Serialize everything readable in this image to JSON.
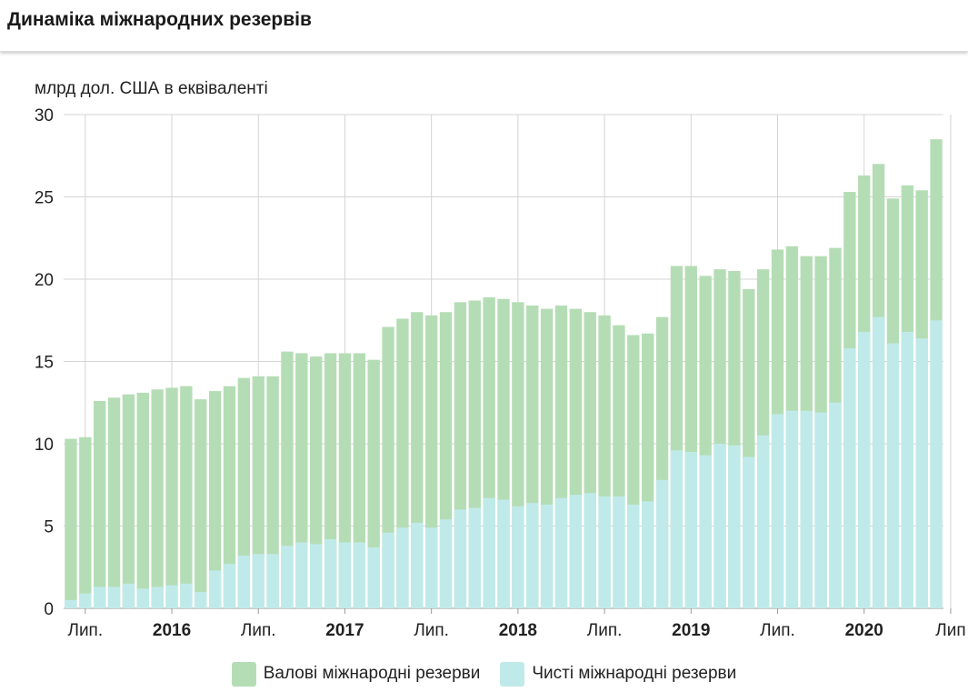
{
  "header": {
    "title": "Динаміка міжнародних резервів"
  },
  "colors": {
    "gross": "#b5ddb5",
    "net": "#c0eaea",
    "grid": "#d4d4d4",
    "axis": "#999999"
  },
  "chart_data": {
    "type": "bar",
    "stacked": "overlay",
    "ylabel": "млрд дол. США в еквіваленті",
    "ylim": [
      0,
      30
    ],
    "yticks": [
      0,
      5,
      10,
      15,
      20,
      25,
      30
    ],
    "x_start": "2015-06",
    "x_end": "2020-07",
    "xticks": [
      {
        "label": "Лип.",
        "month": "2015-07",
        "bold": false
      },
      {
        "label": "2016",
        "month": "2016-01",
        "bold": true
      },
      {
        "label": "Лип.",
        "month": "2016-07",
        "bold": false
      },
      {
        "label": "2017",
        "month": "2017-01",
        "bold": true
      },
      {
        "label": "Лип.",
        "month": "2017-07",
        "bold": false
      },
      {
        "label": "2018",
        "month": "2018-01",
        "bold": true
      },
      {
        "label": "Лип.",
        "month": "2018-07",
        "bold": false
      },
      {
        "label": "2019",
        "month": "2019-01",
        "bold": true
      },
      {
        "label": "Лип.",
        "month": "2019-07",
        "bold": false
      },
      {
        "label": "2020",
        "month": "2020-01",
        "bold": true
      },
      {
        "label": "Лип",
        "month": "2020-07",
        "bold": false
      }
    ],
    "legend_position": "bottom",
    "series": [
      {
        "name": "Валові міжнародні резерви",
        "color": "#b5ddb5",
        "values": [
          10.3,
          10.4,
          12.6,
          12.8,
          13.0,
          13.1,
          13.3,
          13.4,
          13.5,
          12.7,
          13.2,
          13.5,
          14.0,
          14.1,
          14.1,
          15.6,
          15.5,
          15.3,
          15.5,
          15.5,
          15.5,
          15.1,
          17.1,
          17.6,
          18.0,
          17.8,
          18.0,
          18.6,
          18.7,
          18.9,
          18.8,
          18.6,
          18.4,
          18.2,
          18.4,
          18.2,
          18.0,
          17.8,
          17.2,
          16.6,
          16.7,
          17.7,
          20.8,
          20.8,
          20.2,
          20.6,
          20.5,
          19.4,
          20.6,
          21.8,
          22.0,
          21.4,
          21.4,
          21.9,
          25.3,
          26.3,
          27.0,
          24.9,
          25.7,
          25.4,
          28.5
        ]
      },
      {
        "name": "Чисті міжнародні резерви",
        "color": "#c0eaea",
        "values": [
          0.5,
          0.9,
          1.3,
          1.3,
          1.5,
          1.2,
          1.3,
          1.4,
          1.5,
          1.0,
          2.3,
          2.7,
          3.2,
          3.3,
          3.3,
          3.8,
          4.0,
          3.9,
          4.2,
          4.0,
          4.0,
          3.7,
          4.6,
          4.9,
          5.2,
          4.9,
          5.4,
          6.0,
          6.1,
          6.7,
          6.6,
          6.2,
          6.4,
          6.3,
          6.7,
          6.9,
          7.0,
          6.8,
          6.8,
          6.3,
          6.5,
          7.8,
          9.6,
          9.5,
          9.3,
          10.0,
          9.9,
          9.2,
          10.5,
          11.8,
          12.0,
          12.0,
          11.9,
          12.5,
          15.8,
          16.8,
          17.7,
          16.1,
          16.8,
          16.4,
          17.5
        ]
      }
    ]
  }
}
